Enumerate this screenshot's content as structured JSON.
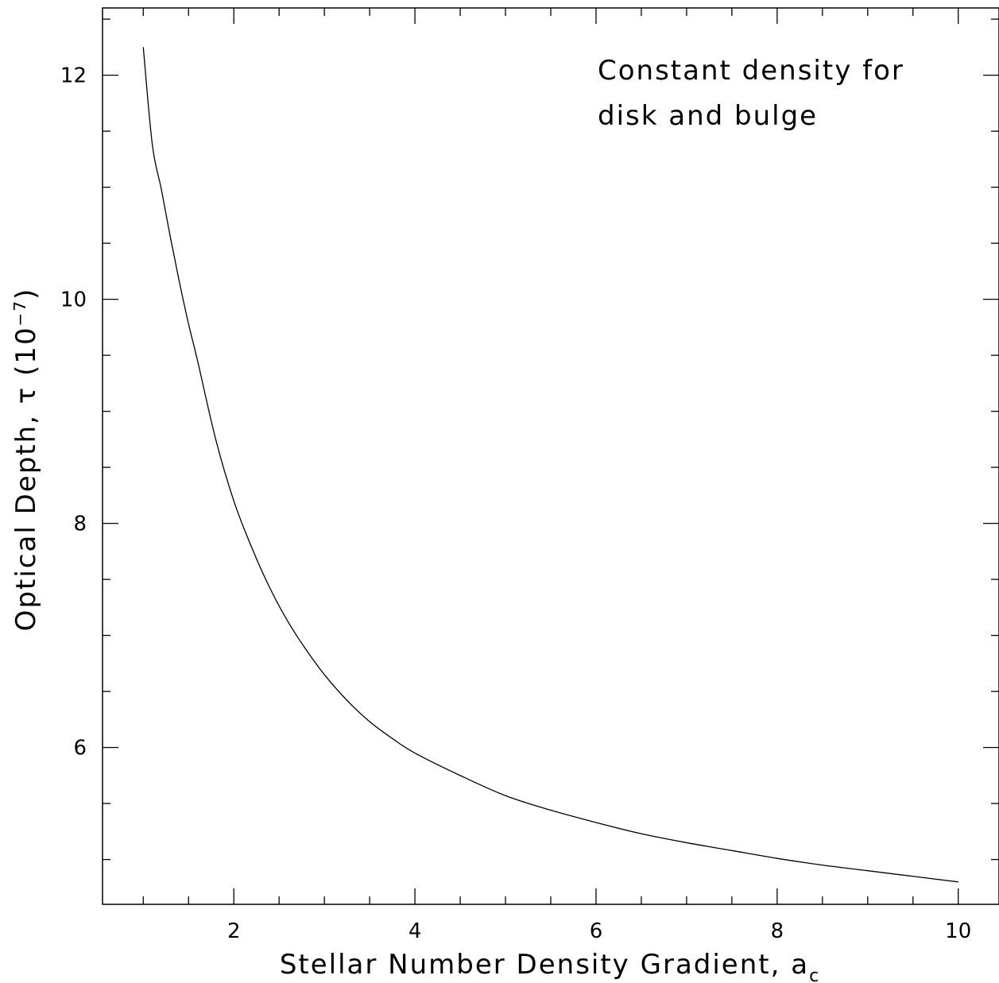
{
  "chart_data": {
    "type": "line",
    "title": "",
    "xlabel": "Stellar Number Density Gradient, a",
    "xlabel_subscript": "c",
    "ylabel": "Optical Depth, τ (10",
    "ylabel_superscript": "−7",
    "ylabel_suffix": ")",
    "annotation_lines": [
      "Constant density for",
      "disk and bulge"
    ],
    "xlim": [
      0.55,
      10.45
    ],
    "ylim": [
      4.6,
      12.6
    ],
    "x_major_ticks": [
      2,
      4,
      6,
      8,
      10
    ],
    "x_tick_labels": [
      "2",
      "4",
      "6",
      "8",
      "10"
    ],
    "x_minor_step": 0.5,
    "y_major_ticks": [
      6,
      8,
      10,
      12
    ],
    "y_tick_labels": [
      "6",
      "8",
      "10",
      "12"
    ],
    "y_minor_step": 0.5,
    "grid": false,
    "series": [
      {
        "x": [
          1.0,
          1.1,
          1.2,
          1.3,
          1.4,
          1.5,
          1.6,
          1.8,
          2.0,
          2.2,
          2.4,
          2.6,
          2.8,
          3.0,
          3.25,
          3.5,
          3.75,
          4.0,
          4.5,
          5.0,
          5.5,
          6.0,
          6.5,
          7.0,
          7.5,
          8.0,
          8.5,
          9.0,
          9.5,
          10.0
        ],
        "y": [
          12.25,
          11.38,
          10.98,
          10.55,
          10.15,
          9.78,
          9.45,
          8.75,
          8.2,
          7.78,
          7.42,
          7.12,
          6.87,
          6.65,
          6.42,
          6.23,
          6.08,
          5.95,
          5.75,
          5.57,
          5.44,
          5.33,
          5.23,
          5.15,
          5.08,
          5.01,
          4.95,
          4.9,
          4.85,
          4.8
        ],
        "color": "#000000"
      }
    ]
  }
}
